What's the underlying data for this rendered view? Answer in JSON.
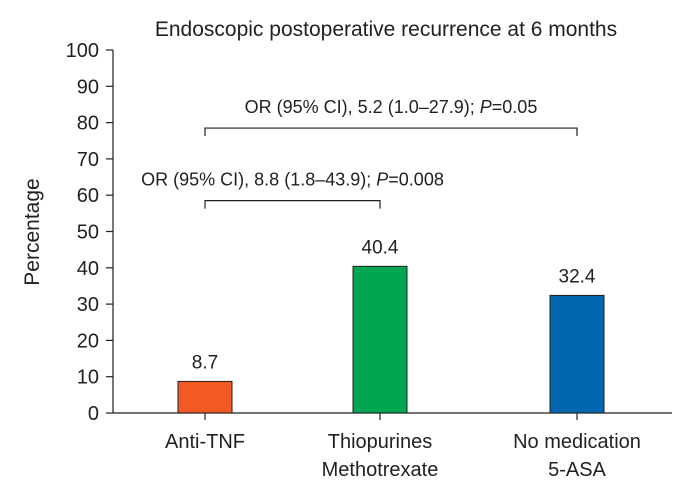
{
  "chart_data": {
    "type": "bar",
    "title": "Endoscopic postoperative recurrence at 6 months",
    "xlabel": "",
    "ylabel": "Percentage",
    "ylim": [
      0,
      100
    ],
    "yticks": [
      0,
      10,
      20,
      30,
      40,
      50,
      60,
      70,
      80,
      90,
      100
    ],
    "grid": false,
    "categories": [
      {
        "lines": [
          "Anti-TNF"
        ]
      },
      {
        "lines": [
          "Thiopurines",
          "Methotrexate"
        ]
      },
      {
        "lines": [
          "No medication",
          "5-ASA"
        ]
      }
    ],
    "values": [
      8.7,
      40.4,
      32.4
    ],
    "value_labels": [
      "8.7",
      "40.4",
      "32.4"
    ],
    "colors": [
      "#f15a22",
      "#00a651",
      "#0067b1"
    ],
    "annotations": [
      {
        "from_category": 0,
        "to_category": 2,
        "y": 78.5,
        "text_prefix": "OR (95% CI), 5.2 (1.0–27.9); ",
        "text_italic": "P",
        "text_suffix": "=0.05"
      },
      {
        "from_category": 0,
        "to_category": 1,
        "y": 58.5,
        "text_prefix": "OR (95% CI), 8.8 (1.8–43.9); ",
        "text_italic": "P",
        "text_suffix": "=0.008"
      }
    ]
  }
}
